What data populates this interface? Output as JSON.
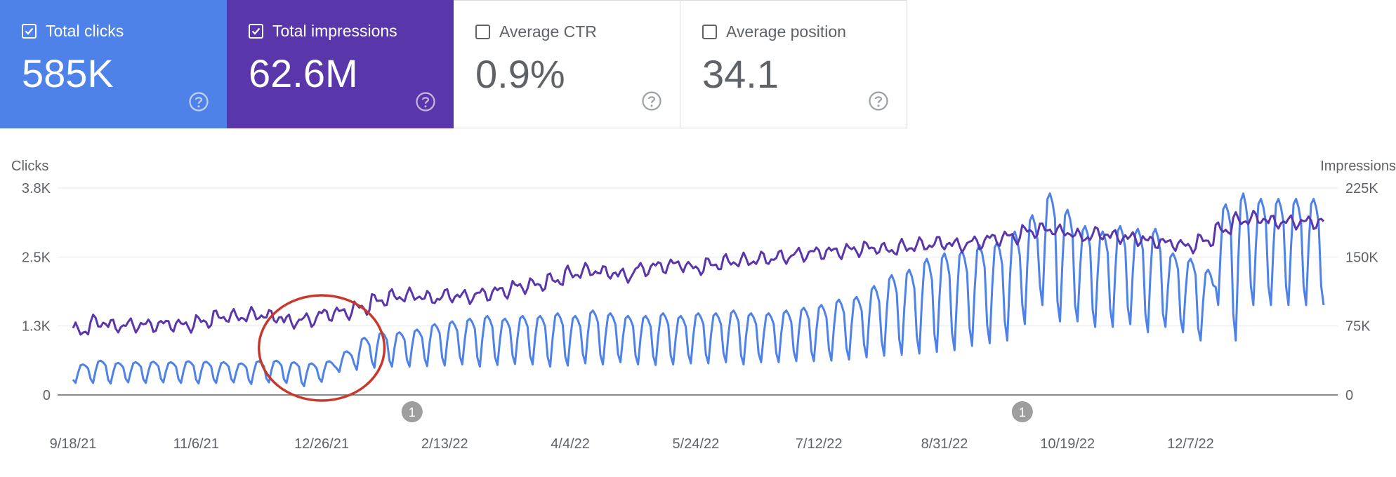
{
  "metrics": [
    {
      "label": "Total clicks",
      "value": "585K",
      "checked": true,
      "bg": "#4f82e8",
      "fg": "#ffffff"
    },
    {
      "label": "Total impressions",
      "value": "62.6M",
      "checked": true,
      "bg": "#5a36ab",
      "fg": "#ffffff"
    },
    {
      "label": "Average CTR",
      "value": "0.9%",
      "checked": false,
      "bg": "#ffffff",
      "fg": "#5f6368"
    },
    {
      "label": "Average position",
      "value": "34.1",
      "checked": false,
      "bg": "#ffffff",
      "fg": "#5f6368"
    }
  ],
  "chart_data": {
    "type": "line",
    "y_left_label": "Clicks",
    "y_right_label": "Impressions",
    "y_left_ticks": [
      "3.8K",
      "2.5K",
      "1.3K",
      "0"
    ],
    "y_right_ticks": [
      "225K",
      "150K",
      "75K",
      "0"
    ],
    "y_left_range": [
      0,
      3800
    ],
    "y_right_range": [
      0,
      225000
    ],
    "x_ticks": [
      "9/18/21",
      "11/6/21",
      "12/26/21",
      "2/13/22",
      "4/4/22",
      "5/24/22",
      "7/12/22",
      "8/31/22",
      "10/19/22",
      "12/7/22"
    ],
    "x_range": [
      "9/18/21",
      "1/29/23"
    ],
    "grid": true,
    "annotation_markers": [
      {
        "date": "1/31/22",
        "label": "1"
      },
      {
        "date": "10/1/22",
        "label": "1"
      }
    ],
    "highlight_circle": {
      "date_from": "12/1/21",
      "date_to": "1/20/22",
      "color": "#c7392b"
    },
    "series": [
      {
        "name": "Clicks",
        "axis": "left",
        "color": "#4f82e8",
        "weekly_high": [
          560,
          630,
          590,
          600,
          610,
          600,
          620,
          610,
          600,
          580,
          620,
          630,
          600,
          580,
          620,
          800,
          1050,
          1150,
          1150,
          1200,
          1300,
          1350,
          1400,
          1450,
          1400,
          1450,
          1450,
          1500,
          1450,
          1550,
          1500,
          1450,
          1450,
          1500,
          1450,
          1500,
          1500,
          1550,
          1500,
          1500,
          1550,
          1600,
          1650,
          1750,
          1800,
          2000,
          2200,
          2300,
          2500,
          2600,
          2650,
          2750,
          2800,
          3000,
          3300,
          3700,
          3400,
          3100,
          3000,
          3100,
          3050,
          3050,
          2600,
          2500,
          2300,
          3500,
          3700,
          3600,
          3600
        ],
        "weekly_low": [
          220,
          220,
          210,
          230,
          220,
          230,
          220,
          210,
          220,
          230,
          200,
          230,
          220,
          160,
          240,
          420,
          460,
          500,
          520,
          520,
          530,
          540,
          560,
          520,
          550,
          570,
          560,
          520,
          540,
          580,
          560,
          600,
          560,
          550,
          560,
          580,
          580,
          600,
          560,
          600,
          600,
          620,
          620,
          630,
          650,
          690,
          720,
          740,
          760,
          790,
          820,
          900,
          950,
          1000,
          1300,
          1650,
          1350,
          1350,
          1250,
          1250,
          1300,
          1150,
          1250,
          1150,
          1000,
          1650,
          1000,
          1650,
          1650
        ]
      },
      {
        "name": "Impressions",
        "axis": "right",
        "color": "#5a36ab",
        "weekly_avg": [
          70000,
          79000,
          75000,
          76000,
          76000,
          77000,
          76000,
          80000,
          85000,
          85000,
          87000,
          85000,
          80000,
          82000,
          88000,
          90000,
          95000,
          103000,
          107000,
          108000,
          105000,
          108000,
          107000,
          110000,
          113000,
          118000,
          120000,
          125000,
          132000,
          135000,
          133000,
          130000,
          137000,
          140000,
          142000,
          138000,
          142000,
          145000,
          146000,
          148000,
          150000,
          153000,
          155000,
          156000,
          158000,
          160000,
          158000,
          161000,
          163000,
          165000,
          163000,
          166000,
          170000,
          172000,
          178000,
          180000,
          177000,
          172000,
          175000,
          172000,
          170000,
          167000,
          165000,
          162000,
          168000,
          180000,
          190000,
          192000,
          188000
        ],
        "weekly_amplitude": 8000
      }
    ]
  }
}
